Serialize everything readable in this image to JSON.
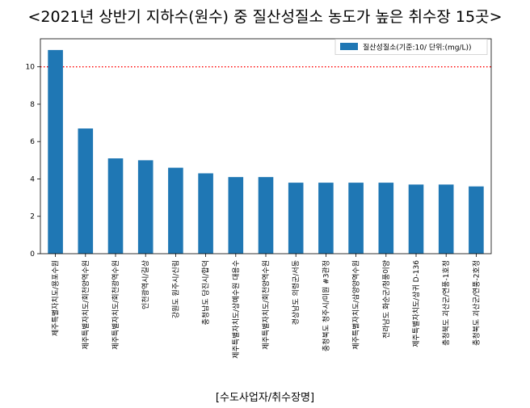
{
  "chart_data": {
    "type": "bar",
    "title": "<2021년 상반기 지하수(원수) 중 질산성질소 농도가 높은 취수장 15곳>",
    "xlabel": "[수도사업자/취수장명]",
    "ylabel": "",
    "categories": [
      "제주특별자치도/용포수원",
      "제주특별자치도/회천양역수원",
      "제주특별자치도/회천광역수원",
      "인천광역시/길상",
      "강원도 원주시/신림",
      "충청남도 당진시/합덕",
      "제주특별자치도/상예수원 대용수",
      "제주특별자치도/회천양역수원",
      "경상남도 의령군/서동",
      "충청북도 청주시/미원 #3관정",
      "제주특별자치도/삼양양역수원",
      "전라남도 화순군/청풍이양",
      "제주특별자치도/상귀 D-136",
      "충청북도 괴산군/연풍-1호정",
      "충청북도 괴산군/연풍-2호정"
    ],
    "series": [
      {
        "name": "질산성질소(기준:10/ 단위:(mg/L))",
        "color": "#1f77b4",
        "values": [
          10.9,
          6.7,
          5.1,
          5.0,
          4.6,
          4.3,
          4.1,
          4.1,
          3.8,
          3.8,
          3.8,
          3.8,
          3.7,
          3.7,
          3.6
        ]
      }
    ],
    "yticks": [
      0,
      2,
      4,
      6,
      8,
      10
    ],
    "ylim": [
      0,
      11.5
    ],
    "reference_line": {
      "value": 10,
      "color": "#ff0000",
      "style": "dotted"
    },
    "grid": false,
    "legend_position": "top-right"
  }
}
